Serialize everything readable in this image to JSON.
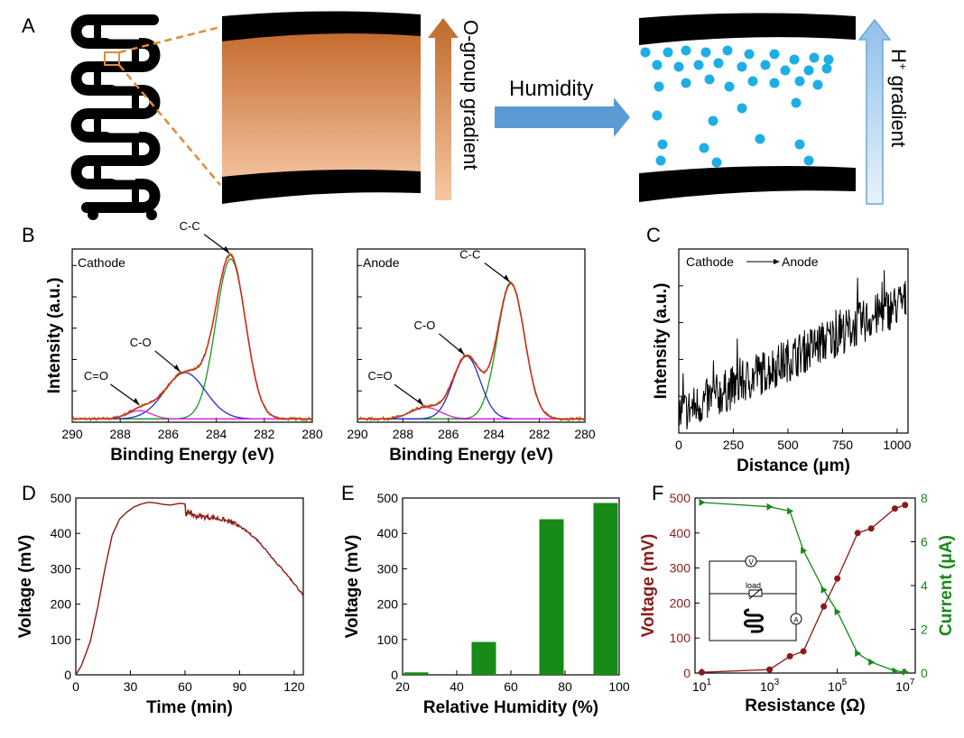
{
  "panels": {
    "A": {
      "label": "A",
      "o_group_text": "O-group gradient",
      "humidity_text": "Humidity",
      "h_text": "H",
      "h_sup": "+",
      "gradient_text": " gradient",
      "colors": {
        "copper_top": "#c46a2d",
        "copper_bottom": "#f5c4a0",
        "arrow_blue": "#5b9bd5",
        "dot_blue": "#1eaee6"
      }
    },
    "B": {
      "label": "B"
    },
    "C": {
      "label": "C"
    },
    "D": {
      "label": "D"
    },
    "E": {
      "label": "E"
    },
    "F": {
      "label": "F"
    }
  },
  "chart_data": [
    {
      "id": "B-cathode",
      "type": "line",
      "title": "Cathode",
      "xlabel": "Binding Energy (eV)",
      "ylabel": "Intensity (a.u.)",
      "xlim": [
        290,
        280
      ],
      "xticks": [
        290,
        288,
        286,
        284,
        282,
        280
      ],
      "ylim": [
        0,
        1.05
      ],
      "peaks": [
        {
          "name": "C-C",
          "center": 283.4,
          "height": 0.97,
          "width": 0.62,
          "color": "#1a9a1a"
        },
        {
          "name": "C-O",
          "center": 285.3,
          "height": 0.28,
          "width": 0.85,
          "color": "#1f2fd0"
        },
        {
          "name": "C=O",
          "center": 287.2,
          "height": 0.05,
          "width": 0.5,
          "color": "#e020e0"
        }
      ],
      "baseline": 0.02,
      "annotations": [
        {
          "text": "C-C",
          "target": 283.45
        },
        {
          "text": "C-O",
          "target": 285.5
        },
        {
          "text": "C=O",
          "target": 287.2
        }
      ],
      "colors": {
        "raw": "#8a8a20",
        "envelope": "#e02020",
        "baseline": "#222222"
      }
    },
    {
      "id": "B-anode",
      "type": "line",
      "title": "Anode",
      "xlabel": "Binding Energy (eV)",
      "ylabel": "",
      "xlim": [
        290,
        280
      ],
      "xticks": [
        290,
        288,
        286,
        284,
        282,
        280
      ],
      "ylim": [
        0,
        1.05
      ],
      "peaks": [
        {
          "name": "C-C",
          "center": 283.25,
          "height": 0.82,
          "width": 0.6,
          "color": "#1a9a1a"
        },
        {
          "name": "C-O",
          "center": 285.2,
          "height": 0.38,
          "width": 0.6,
          "color": "#1f2fd0"
        },
        {
          "name": "C=O",
          "center": 287.0,
          "height": 0.07,
          "width": 0.65,
          "color": "#e020e0"
        }
      ],
      "baseline": 0.02,
      "annotations": [
        {
          "text": "C-C",
          "target": 283.3
        },
        {
          "text": "C-O",
          "target": 285.3
        },
        {
          "text": "C=O",
          "target": 287.1
        }
      ],
      "colors": {
        "raw": "#8a8a20",
        "envelope": "#e02020",
        "baseline": "#222222"
      }
    },
    {
      "id": "C",
      "type": "line",
      "xlabel": "Distance (μm)",
      "ylabel": "Intensity (a.u.)",
      "xlim": [
        0,
        1050
      ],
      "xticks": [
        0,
        250,
        500,
        750,
        1000
      ],
      "ylim": [
        0,
        1
      ],
      "annotation_from": "Cathode",
      "annotation_to": "Anode",
      "trend": {
        "start": 0.1,
        "end": 0.72,
        "noise": 0.12,
        "points": 420
      },
      "color": "#000000"
    },
    {
      "id": "D",
      "type": "line",
      "xlabel": "Time (min)",
      "ylabel": "Voltage (mV)",
      "xlim": [
        0,
        125
      ],
      "xticks": [
        0,
        30,
        60,
        90,
        120
      ],
      "ylim": [
        0,
        500
      ],
      "yticks": [
        0,
        100,
        200,
        300,
        400,
        500
      ],
      "x": [
        0,
        3,
        8,
        12,
        16,
        20,
        24,
        28,
        32,
        36,
        40,
        44,
        48,
        52,
        56,
        58,
        60,
        60.5,
        62,
        65,
        70,
        75,
        80,
        85,
        88,
        90,
        95,
        100,
        105,
        110,
        115,
        120,
        125
      ],
      "y": [
        0,
        25,
        95,
        190,
        300,
        395,
        440,
        460,
        475,
        483,
        488,
        486,
        482,
        480,
        484,
        485,
        483,
        455,
        462,
        450,
        447,
        445,
        440,
        432,
        425,
        420,
        402,
        380,
        350,
        318,
        290,
        258,
        225
      ],
      "color": "#8b1a1a"
    },
    {
      "id": "E",
      "type": "bar",
      "xlabel": "Relative Humidity (%)",
      "ylabel": "Voltage (mV)",
      "xlim": [
        20,
        100
      ],
      "xticks": [
        20,
        40,
        60,
        80,
        100
      ],
      "ylim": [
        0,
        500
      ],
      "yticks": [
        0,
        100,
        200,
        300,
        400,
        500
      ],
      "x": [
        25,
        50,
        75,
        95
      ],
      "values": [
        7,
        93,
        440,
        486
      ],
      "bar_width": 9,
      "color": "#178a17"
    },
    {
      "id": "F",
      "type": "line",
      "xlabel": "Resistance (Ω)",
      "ylabel": "Voltage (mV)",
      "ylabel2": "Current (μA)",
      "xscale": "log",
      "xlim_log": [
        0.8,
        7.3
      ],
      "xticks_log": [
        1,
        3,
        5,
        7
      ],
      "ylim": [
        0,
        500
      ],
      "yticks": [
        0,
        100,
        200,
        300,
        400,
        500
      ],
      "ylim2": [
        0,
        8
      ],
      "yticks2": [
        0,
        2,
        4,
        6,
        8
      ],
      "series": [
        {
          "name": "Voltage (mV)",
          "axis": "left",
          "color": "#8b1a1a",
          "marker": "circle",
          "logx": [
            1,
            3,
            3.6,
            4,
            4.6,
            5,
            5.6,
            6,
            6.7,
            7
          ],
          "values": [
            2,
            10,
            48,
            62,
            190,
            270,
            400,
            413,
            470,
            480
          ]
        },
        {
          "name": "Current (μA)",
          "axis": "right",
          "color": "#178a17",
          "marker": "triangle",
          "logx": [
            1,
            3,
            3.6,
            4,
            4.6,
            5,
            5.6,
            6,
            6.7,
            7
          ],
          "values": [
            7.8,
            7.6,
            7.4,
            5.6,
            3.8,
            2.8,
            0.9,
            0.5,
            0.1,
            0.05
          ]
        }
      ],
      "inset": {
        "v_label": "V",
        "load_label": "load",
        "a_label": "A"
      }
    }
  ]
}
